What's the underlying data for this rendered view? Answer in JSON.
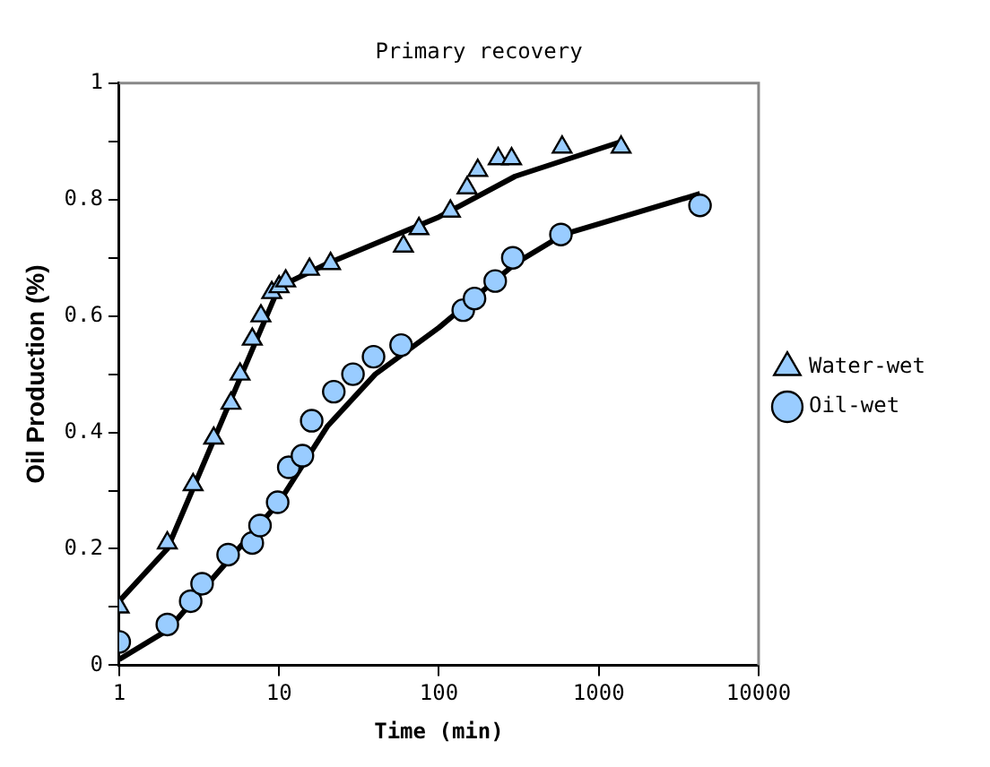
{
  "chart_data": {
    "type": "scatter",
    "title": "Primary recovery",
    "xlabel": "Time (min)",
    "ylabel": "Oil Production (%)",
    "log": "x",
    "xlim": [
      1,
      10000
    ],
    "xticks": [
      1,
      10,
      100,
      1000,
      10000
    ],
    "ylim": [
      0,
      1
    ],
    "yticks": [
      0,
      {
        "value": 0.1,
        "label": null
      },
      {
        "value": 0.2,
        "label": "0.2"
      },
      {
        "value": 0.3,
        "label": null
      },
      {
        "value": 0.4,
        "label": "0.4"
      },
      {
        "value": 0.5,
        "label": null
      },
      {
        "value": 0.6,
        "label": "0.6"
      },
      {
        "value": 0.7,
        "label": null
      },
      {
        "value": 0.8,
        "label": "0.8"
      },
      {
        "value": 0.9,
        "label": null
      },
      1
    ],
    "grid": false,
    "legend": "right",
    "series": [
      {
        "type": "line",
        "color": "#000000",
        "marker": "none",
        "x": [
          1,
          2,
          10,
          20,
          100,
          300,
          1400
        ],
        "values": [
          0.11,
          0.2,
          0.65,
          0.69,
          0.77,
          0.84,
          0.9
        ]
      },
      {
        "type": "line",
        "color": "#000000",
        "marker": "none",
        "x": [
          1,
          2,
          10,
          20,
          40,
          100,
          300,
          600,
          4300
        ],
        "values": [
          0.01,
          0.06,
          0.28,
          0.41,
          0.5,
          0.58,
          0.69,
          0.74,
          0.81
        ]
      },
      {
        "name": "Water-wet",
        "type": "scatter",
        "color": "#99ccff",
        "marker": "triangle",
        "x": [
          1,
          2,
          2.9,
          3.9,
          5,
          5.7,
          6.8,
          7.7,
          9,
          10,
          11,
          15.5,
          21,
          60,
          75,
          118,
          150,
          175,
          235,
          285,
          590,
          1380
        ],
        "values": [
          0.1,
          0.21,
          0.31,
          0.39,
          0.45,
          0.5,
          0.56,
          0.6,
          0.64,
          0.65,
          0.66,
          0.68,
          0.69,
          0.72,
          0.75,
          0.78,
          0.82,
          0.85,
          0.87,
          0.87,
          0.89,
          0.89
        ]
      },
      {
        "name": "Oil-wet",
        "type": "scatter",
        "color": "#99ccff",
        "marker": "circle",
        "x": [
          1,
          2,
          2.8,
          3.3,
          4.8,
          6.8,
          7.6,
          9.8,
          11.5,
          14,
          16,
          22,
          29,
          39,
          58,
          142,
          167,
          225,
          290,
          580,
          4300
        ],
        "values": [
          0.04,
          0.07,
          0.11,
          0.14,
          0.19,
          0.21,
          0.24,
          0.28,
          0.34,
          0.36,
          0.42,
          0.47,
          0.5,
          0.53,
          0.55,
          0.61,
          0.63,
          0.66,
          0.7,
          0.74,
          0.79
        ]
      }
    ]
  }
}
